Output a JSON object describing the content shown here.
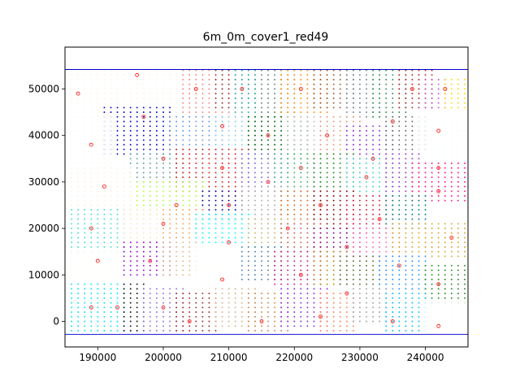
{
  "chart_data": {
    "type": "scatter",
    "title": "6m_0m_cover1_red49",
    "xlabel": "",
    "ylabel": "",
    "xlim": [
      185000,
      246500
    ],
    "ylim": [
      -5500,
      59000
    ],
    "x_ticks": [
      190000,
      200000,
      210000,
      220000,
      230000,
      240000
    ],
    "x_tick_labels": [
      "190000",
      "200000",
      "210000",
      "220000",
      "230000",
      "240000"
    ],
    "y_ticks": [
      0,
      10000,
      20000,
      30000,
      40000,
      50000
    ],
    "y_tick_labels": [
      "0",
      "10000",
      "20000",
      "30000",
      "40000",
      "50000"
    ],
    "grid": false,
    "legend": "none",
    "boundary_lines": {
      "y": [
        54200,
        -2800
      ],
      "color": "#0000cc"
    },
    "point_spacing": 1000,
    "cluster_series": [
      {
        "color": "#fff5e6",
        "extent": [
          186000,
          196000,
          45000,
          54000
        ]
      },
      {
        "color": "#fdf5e8",
        "extent": [
          196000,
          205000,
          45000,
          54000
        ]
      },
      {
        "color": "#fa8072",
        "extent": [
          203000,
          210000,
          44000,
          54000
        ]
      },
      {
        "color": "#8b3a3a",
        "extent": [
          208000,
          214000,
          46000,
          54000
        ]
      },
      {
        "color": "#20b2aa",
        "extent": [
          211000,
          218000,
          44000,
          54000
        ]
      },
      {
        "color": "#888888",
        "extent": [
          215000,
          220000,
          44000,
          54000
        ]
      },
      {
        "color": "#ff8c00",
        "extent": [
          218000,
          225000,
          45000,
          54000
        ]
      },
      {
        "color": "#a0522d",
        "extent": [
          223000,
          229000,
          46000,
          54000
        ]
      },
      {
        "color": "#708090",
        "extent": [
          228000,
          233000,
          44000,
          54000
        ]
      },
      {
        "color": "#2e8b57",
        "extent": [
          232000,
          237000,
          44000,
          54000
        ]
      },
      {
        "color": "#b22222",
        "extent": [
          236000,
          241000,
          46000,
          54000
        ]
      },
      {
        "color": "#ba55d3",
        "extent": [
          240000,
          243000,
          46000,
          52000
        ]
      },
      {
        "color": "#ffd700",
        "extent": [
          243000,
          246000,
          46000,
          52000
        ]
      },
      {
        "color": "#0000cd",
        "extent": [
          191000,
          201000,
          36000,
          46000
        ]
      },
      {
        "color": "#fffaf0",
        "extent": [
          186000,
          192000,
          33000,
          44000
        ]
      },
      {
        "color": "#6495ed",
        "extent": [
          201000,
          209000,
          36000,
          44000
        ]
      },
      {
        "color": "#87ceeb",
        "extent": [
          208000,
          215000,
          36000,
          44000
        ]
      },
      {
        "color": "#006400",
        "extent": [
          213000,
          222000,
          35000,
          44000
        ]
      },
      {
        "color": "#c0c0c0",
        "extent": [
          219000,
          225000,
          36000,
          44000
        ]
      },
      {
        "color": "#e9967a",
        "extent": [
          224000,
          230000,
          36000,
          44000
        ]
      },
      {
        "color": "#8a2be2",
        "extent": [
          228000,
          235000,
          35000,
          42000
        ]
      },
      {
        "color": "#696969",
        "extent": [
          234000,
          240000,
          37000,
          44000
        ]
      },
      {
        "color": "#f0fff0",
        "extent": [
          239000,
          246000,
          35000,
          44000
        ]
      },
      {
        "color": "#5f9ea0",
        "extent": [
          195000,
          203000,
          30000,
          36000
        ]
      },
      {
        "color": "#e31a1c",
        "extent": [
          202000,
          213000,
          28000,
          37000
        ]
      },
      {
        "color": "#7b68ee",
        "extent": [
          212000,
          219000,
          28000,
          36000
        ]
      },
      {
        "color": "#3cb371",
        "extent": [
          217000,
          224000,
          28000,
          36000
        ]
      },
      {
        "color": "#228b22",
        "extent": [
          223000,
          229000,
          29000,
          36000
        ]
      },
      {
        "color": "#48d1cc",
        "extent": [
          228000,
          235000,
          27000,
          35000
        ]
      },
      {
        "color": "#9932cc",
        "extent": [
          234000,
          239000,
          28000,
          36000
        ]
      },
      {
        "color": "#ff1493",
        "extent": [
          238000,
          246000,
          26000,
          34000
        ]
      },
      {
        "color": "#fff0e0",
        "extent": [
          186000,
          195000,
          24000,
          33000
        ]
      },
      {
        "color": "#adff2f",
        "extent": [
          196000,
          206000,
          23000,
          30000
        ]
      },
      {
        "color": "#00008b",
        "extent": [
          206000,
          212000,
          22000,
          28000
        ]
      },
      {
        "color": "#a9a9a9",
        "extent": [
          212000,
          219000,
          22000,
          29000
        ]
      },
      {
        "color": "#d2691e",
        "extent": [
          218000,
          224000,
          21000,
          28000
        ]
      },
      {
        "color": "#800000",
        "extent": [
          223000,
          229000,
          20000,
          28000
        ]
      },
      {
        "color": "#dc143c",
        "extent": [
          228000,
          235000,
          19000,
          27000
        ]
      },
      {
        "color": "#008080",
        "extent": [
          234000,
          240000,
          20000,
          27000
        ]
      },
      {
        "color": "#40e0d0",
        "extent": [
          186000,
          194000,
          15000,
          24000
        ]
      },
      {
        "color": "#ffe4c4",
        "extent": [
          194000,
          201000,
          17000,
          24000
        ]
      },
      {
        "color": "#f4a460",
        "extent": [
          200000,
          206000,
          18000,
          24000
        ]
      },
      {
        "color": "#00ffff",
        "extent": [
          205000,
          213000,
          17000,
          23000
        ]
      },
      {
        "color": "#bdb76b",
        "extent": [
          213000,
          219000,
          16000,
          22000
        ]
      },
      {
        "color": "#cd5c5c",
        "extent": [
          218000,
          224000,
          15000,
          21000
        ]
      },
      {
        "color": "#8b008b",
        "extent": [
          223000,
          230000,
          14000,
          20000
        ]
      },
      {
        "color": "#ff69b4",
        "extent": [
          229000,
          236000,
          14000,
          20000
        ]
      },
      {
        "color": "#daa520",
        "extent": [
          235000,
          246000,
          14000,
          21000
        ]
      },
      {
        "color": "#fffff0",
        "extent": [
          186000,
          193000,
          9000,
          15000
        ]
      },
      {
        "color": "#9400d3",
        "extent": [
          194000,
          201000,
          10000,
          17000
        ]
      },
      {
        "color": "#deb887",
        "extent": [
          200000,
          205000,
          10000,
          17000
        ]
      },
      {
        "color": "#fffdf5",
        "extent": [
          205000,
          213000,
          7000,
          16000
        ]
      },
      {
        "color": "#4682b4",
        "extent": [
          212000,
          218000,
          9000,
          16000
        ]
      },
      {
        "color": "#c71585",
        "extent": [
          217000,
          224000,
          8000,
          15000
        ]
      },
      {
        "color": "#b8860b",
        "extent": [
          223000,
          228000,
          8000,
          15000
        ]
      },
      {
        "color": "#556b2f",
        "extent": [
          227000,
          233000,
          8000,
          14000
        ]
      },
      {
        "color": "#1e90ff",
        "extent": [
          233000,
          240000,
          7000,
          14000
        ]
      },
      {
        "color": "#228b22",
        "extent": [
          240000,
          246000,
          4000,
          12000
        ]
      },
      {
        "color": "#00e5ee",
        "extent": [
          186000,
          194000,
          -2000,
          8000
        ]
      },
      {
        "color": "#111111",
        "extent": [
          194000,
          197000,
          -2000,
          8000
        ]
      },
      {
        "color": "#9370db",
        "extent": [
          197000,
          203000,
          -2000,
          7000
        ]
      },
      {
        "color": "#a52a2a",
        "extent": [
          202000,
          208000,
          -2000,
          6000
        ]
      },
      {
        "color": "#d2b48c",
        "extent": [
          208000,
          214000,
          -1000,
          7000
        ]
      },
      {
        "color": "#cd853f",
        "extent": [
          213000,
          219000,
          -2000,
          6000
        ]
      },
      {
        "color": "#8a2be2",
        "extent": [
          218000,
          225000,
          -1000,
          7000
        ]
      },
      {
        "color": "#ff7f50",
        "extent": [
          224000,
          229000,
          -2000,
          6000
        ]
      },
      {
        "color": "#a0a0a0",
        "extent": [
          229000,
          235000,
          0,
          7000
        ]
      },
      {
        "color": "#00bfff",
        "extent": [
          234000,
          240000,
          -2000,
          6000
        ]
      },
      {
        "color": "#fffaf5",
        "extent": [
          240000,
          246000,
          -2000,
          4000
        ]
      }
    ],
    "center_points": {
      "marker": "open-circle",
      "color": "#ff0000",
      "points": [
        [
          187000,
          49000
        ],
        [
          196000,
          53000
        ],
        [
          205000,
          50000
        ],
        [
          212000,
          50000
        ],
        [
          221000,
          50000
        ],
        [
          238000,
          50000
        ],
        [
          243000,
          50000
        ],
        [
          197000,
          44000
        ],
        [
          209000,
          42000
        ],
        [
          216000,
          40000
        ],
        [
          225000,
          40000
        ],
        [
          235000,
          43000
        ],
        [
          242000,
          41000
        ],
        [
          189000,
          38000
        ],
        [
          200000,
          35000
        ],
        [
          209000,
          33000
        ],
        [
          221000,
          33000
        ],
        [
          232000,
          35000
        ],
        [
          242000,
          33000
        ],
        [
          191000,
          29000
        ],
        [
          216000,
          30000
        ],
        [
          231000,
          31000
        ],
        [
          202000,
          25000
        ],
        [
          210000,
          25000
        ],
        [
          224000,
          25000
        ],
        [
          242000,
          28000
        ],
        [
          200000,
          21000
        ],
        [
          219000,
          20000
        ],
        [
          233000,
          22000
        ],
        [
          189000,
          20000
        ],
        [
          210000,
          17000
        ],
        [
          228000,
          16000
        ],
        [
          244000,
          18000
        ],
        [
          198000,
          13000
        ],
        [
          190000,
          13000
        ],
        [
          221000,
          10000
        ],
        [
          236000,
          12000
        ],
        [
          209000,
          9000
        ],
        [
          189000,
          3000
        ],
        [
          193000,
          3000
        ],
        [
          200000,
          3000
        ],
        [
          204000,
          0
        ],
        [
          215000,
          0
        ],
        [
          224000,
          1000
        ],
        [
          228000,
          6000
        ],
        [
          235000,
          0
        ],
        [
          242000,
          8000
        ],
        [
          242000,
          -1000
        ]
      ]
    }
  }
}
